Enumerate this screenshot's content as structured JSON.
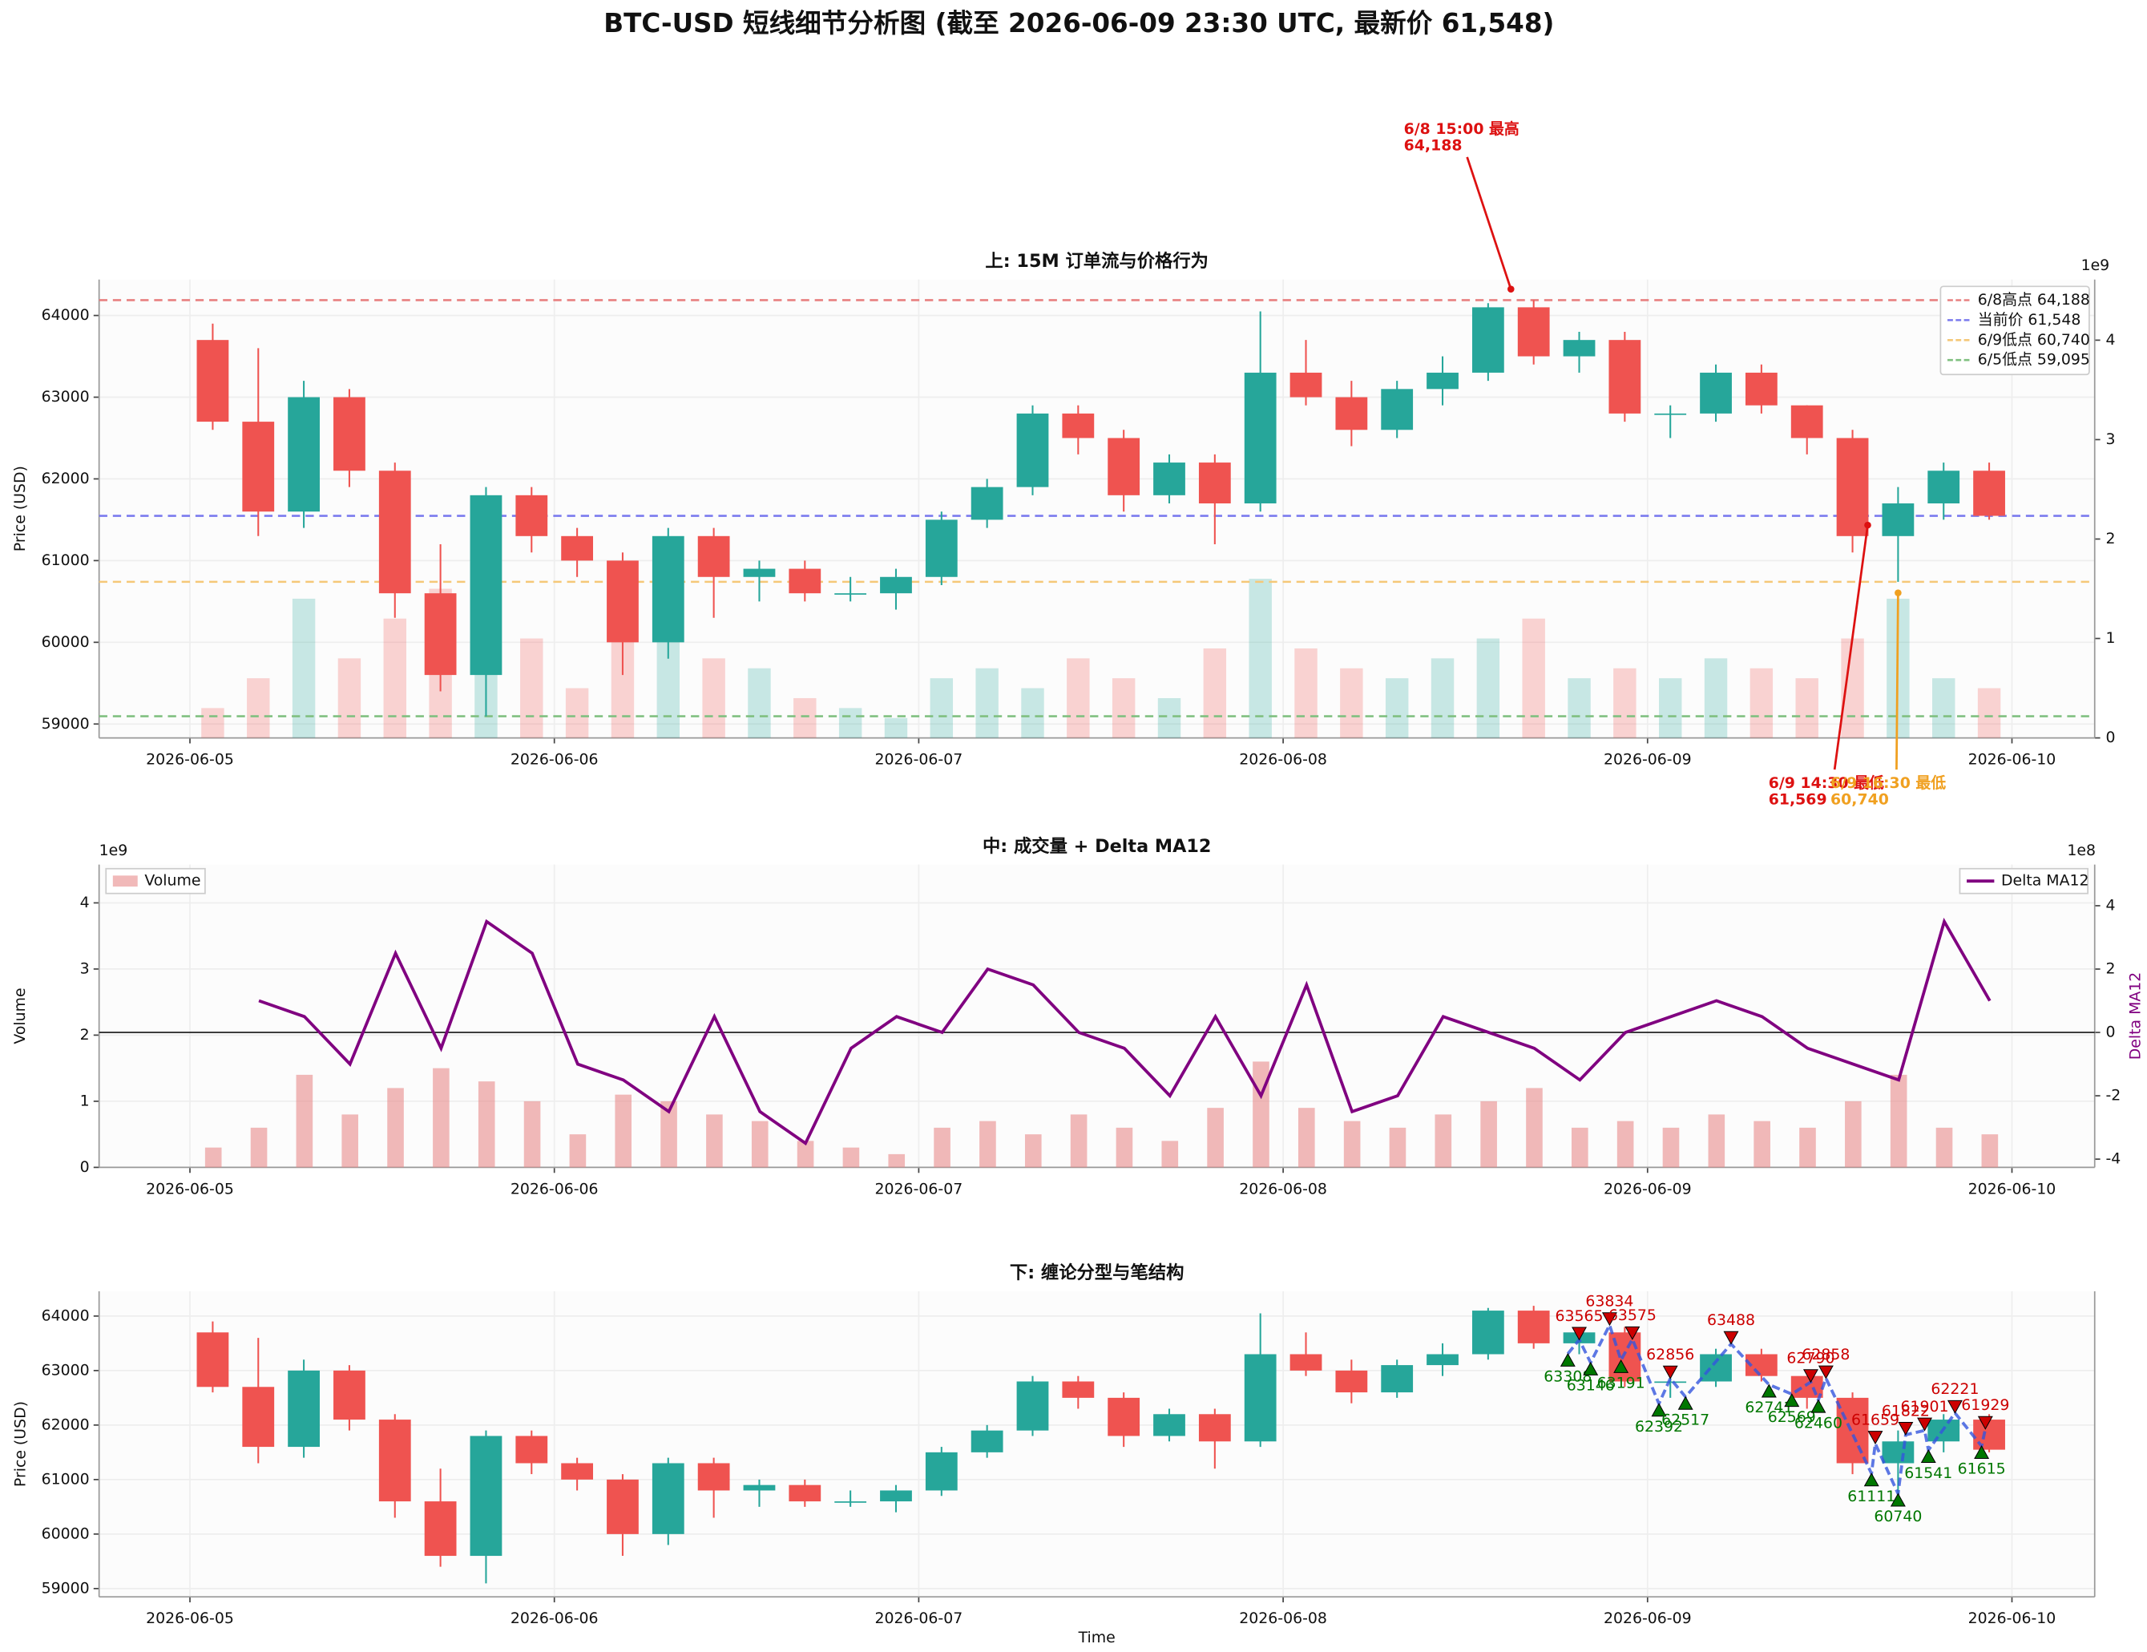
{
  "title": "BTC-USD 短线细节分析图 (截至 2026-06-09 23:30 UTC, 最新价 61,548)",
  "chart_data": [
    {
      "type": "candlestick",
      "title": "上: 15M 订单流与价格行为",
      "y_label": "Price (USD)",
      "y2_offset_label": "1e9",
      "x": [
        "2026-06-05 00:00",
        "2026-06-05 03:00",
        "2026-06-05 06:00",
        "2026-06-05 09:00",
        "2026-06-05 12:00",
        "2026-06-05 15:00",
        "2026-06-05 18:00",
        "2026-06-05 21:00",
        "2026-06-06 00:00",
        "2026-06-06 03:00",
        "2026-06-06 06:00",
        "2026-06-06 09:00",
        "2026-06-06 12:00",
        "2026-06-06 15:00",
        "2026-06-06 18:00",
        "2026-06-06 21:00",
        "2026-06-07 00:00",
        "2026-06-07 03:00",
        "2026-06-07 06:00",
        "2026-06-07 09:00",
        "2026-06-07 12:00",
        "2026-06-07 15:00",
        "2026-06-07 18:00",
        "2026-06-07 21:00",
        "2026-06-08 00:00",
        "2026-06-08 03:00",
        "2026-06-08 06:00",
        "2026-06-08 09:00",
        "2026-06-08 12:00",
        "2026-06-08 15:00",
        "2026-06-08 18:00",
        "2026-06-08 21:00",
        "2026-06-09 00:00",
        "2026-06-09 03:00",
        "2026-06-09 06:00",
        "2026-06-09 09:00",
        "2026-06-09 12:00",
        "2026-06-09 15:00",
        "2026-06-09 18:00",
        "2026-06-09 21:00"
      ],
      "open": [
        63700,
        62700,
        61600,
        63000,
        62100,
        60600,
        59600,
        61800,
        61300,
        61000,
        60000,
        61300,
        60800,
        60900,
        60600,
        60600,
        60800,
        61500,
        61900,
        62800,
        62500,
        61800,
        62200,
        61700,
        63300,
        63000,
        62600,
        63100,
        63300,
        64100,
        63500,
        63700,
        62800,
        62800,
        63300,
        62900,
        62500,
        61300,
        61700,
        62100
      ],
      "high": [
        63900,
        63600,
        63200,
        63100,
        62200,
        61200,
        61900,
        61900,
        61400,
        61100,
        61400,
        61400,
        61000,
        61000,
        60800,
        60900,
        61600,
        62000,
        62900,
        62900,
        62600,
        62300,
        62300,
        64050,
        63700,
        63200,
        63200,
        63500,
        64150,
        64188,
        63800,
        63800,
        62900,
        63400,
        63400,
        62900,
        62600,
        61900,
        62200,
        62200
      ],
      "low": [
        62600,
        61300,
        61400,
        61900,
        60300,
        59400,
        59095,
        61100,
        60800,
        59600,
        59800,
        60300,
        60500,
        60500,
        60500,
        60400,
        60700,
        61400,
        61800,
        62300,
        61600,
        61700,
        61200,
        61600,
        62900,
        62400,
        62500,
        62900,
        63200,
        63400,
        63300,
        62700,
        62500,
        62700,
        62800,
        62300,
        61100,
        60740,
        61500,
        61500
      ],
      "close": [
        62700,
        61600,
        63000,
        62100,
        60600,
        59600,
        61800,
        61300,
        61000,
        60000,
        61300,
        60800,
        60900,
        60600,
        60600,
        60800,
        61500,
        61900,
        62800,
        62500,
        61800,
        62200,
        61700,
        63300,
        63000,
        62600,
        63100,
        63300,
        64100,
        63500,
        63700,
        62800,
        62800,
        63300,
        62900,
        62500,
        61300,
        61700,
        62100,
        61548
      ],
      "up_color": "#26a69a",
      "down_color": "#ef5350",
      "hlines": [
        {
          "value": 64188,
          "label": "6/8高点 64,188",
          "color": "#e88080"
        },
        {
          "value": 61548,
          "label": "当前价 61,548",
          "color": "#7a7aee"
        },
        {
          "value": 60740,
          "label": "6/9低点 60,740",
          "color": "#f5c878"
        },
        {
          "value": 59095,
          "label": "6/5低点 59,095",
          "color": "#80c080"
        }
      ],
      "annotations": [
        {
          "label": "6/8 15:00 最高",
          "value_label": "64,188",
          "value": 64188,
          "x": "2026-06-08 15:00",
          "color": "#dd1111"
        },
        {
          "label": "6/9 14:30 最低",
          "value_label": "61,569",
          "value": 61569,
          "x": "2026-06-09 14:30",
          "color": "#dd1111"
        },
        {
          "label": "6/9 16:30 最低",
          "value_label": "60,740",
          "value": 60740,
          "x": "2026-06-09 16:30",
          "color": "#f0a020"
        }
      ],
      "xlim": [
        "2026-06-04 18:01",
        "2026-06-10 05:27"
      ],
      "xticks": [
        "2026-06-05",
        "2026-06-06",
        "2026-06-07",
        "2026-06-08",
        "2026-06-09",
        "2026-06-10"
      ],
      "ylim": [
        58830,
        64440
      ],
      "yticks": [
        59000,
        60000,
        61000,
        62000,
        63000,
        64000
      ],
      "y2lim": [
        0,
        4.61
      ],
      "y2ticks": [
        0,
        1,
        2,
        3,
        4
      ],
      "grid": true,
      "legend": "upper right"
    },
    {
      "type": "bar-line",
      "title": "中: 成交量 + Delta MA12",
      "y_label": "Volume",
      "y2_label": "Delta MA12",
      "y_offset_label": "1e9",
      "y2_offset_label": "1e8",
      "series": [
        {
          "name": "Volume",
          "color": "#e88a8a",
          "values": [
            0.3,
            0.6,
            1.4,
            0.8,
            1.2,
            1.5,
            1.3,
            1.0,
            0.5,
            1.1,
            1.0,
            0.8,
            0.7,
            0.4,
            0.3,
            0.2,
            0.6,
            0.7,
            0.5,
            0.8,
            0.6,
            0.4,
            0.9,
            1.6,
            0.9,
            0.7,
            0.6,
            0.8,
            1.0,
            1.2,
            0.6,
            0.7,
            0.6,
            0.8,
            0.7,
            0.6,
            1.0,
            1.4,
            0.6,
            0.5
          ]
        },
        {
          "name": "Delta MA12",
          "color": "#800080",
          "axis": "y2",
          "values": [
            null,
            1.0,
            0.5,
            -1,
            2.5,
            -0.5,
            3.5,
            2.5,
            -1,
            -1.5,
            -2.5,
            0.5,
            -2.5,
            -3.5,
            -0.5,
            0.5,
            0,
            2,
            1.5,
            0,
            -0.5,
            -2,
            0.5,
            -2,
            1.5,
            -2.5,
            -2,
            0.5,
            0,
            -0.5,
            -1.5,
            0,
            0.5,
            1,
            0.5,
            -0.5,
            -1,
            -1.5,
            3.5,
            1
          ]
        }
      ],
      "xlim": [
        "2026-06-04 18:01",
        "2026-06-10 05:27"
      ],
      "xticks": [
        "2026-06-05",
        "2026-06-06",
        "2026-06-07",
        "2026-06-08",
        "2026-06-09",
        "2026-06-10"
      ],
      "ylim": [
        0,
        4.58
      ],
      "yticks": [
        0,
        1,
        2,
        3,
        4
      ],
      "y2lim": [
        -4.26,
        5.3
      ],
      "y2ticks": [
        -4,
        -2,
        0,
        2,
        4
      ],
      "grid": true
    },
    {
      "type": "fractal",
      "title": "下: 缠论分型与笔结构",
      "y_label": "Price (USD)",
      "x_label": "Time",
      "fractals": {
        "x": [
          "2026-06-08 18:45",
          "2026-06-08 19:30",
          "2026-06-08 20:15",
          "2026-06-08 21:30",
          "2026-06-08 22:15",
          "2026-06-08 23:00",
          "2026-06-09 00:45",
          "2026-06-09 01:30",
          "2026-06-09 02:30",
          "2026-06-09 05:30",
          "2026-06-09 08:00",
          "2026-06-09 09:30",
          "2026-06-09 10:45",
          "2026-06-09 11:15",
          "2026-06-09 11:45",
          "2026-06-09 14:45",
          "2026-06-09 15:00",
          "2026-06-09 16:30",
          "2026-06-09 17:00",
          "2026-06-09 18:15",
          "2026-06-09 18:30",
          "2026-06-09 20:15",
          "2026-06-09 22:00",
          "2026-06-09 22:15"
        ],
        "values": [
          63308,
          63565,
          63146,
          63834,
          63191,
          63575,
          62392,
          62856,
          62517,
          63488,
          62741,
          62569,
          62790,
          62460,
          62858,
          61111,
          61659,
          60740,
          61822,
          61901,
          61541,
          62221,
          61615,
          61929
        ],
        "kinds": [
          "bottom",
          "top",
          "bottom",
          "top",
          "bottom",
          "top",
          "bottom",
          "top",
          "bottom",
          "top",
          "bottom",
          "bottom",
          "top",
          "bottom",
          "top",
          "bottom",
          "top",
          "bottom",
          "top",
          "top",
          "bottom",
          "top",
          "bottom",
          "top"
        ]
      },
      "top_color": "#cc0000",
      "bottom_color": "#007700",
      "pen_color": "#3355dd",
      "xlim": [
        "2026-06-04 18:01",
        "2026-06-10 05:27"
      ],
      "xticks": [
        "2026-06-05",
        "2026-06-06",
        "2026-06-07",
        "2026-06-08",
        "2026-06-09",
        "2026-06-10"
      ],
      "ylim": [
        58848,
        64455
      ],
      "yticks": [
        59000,
        60000,
        61000,
        62000,
        63000,
        64000
      ],
      "grid": true
    }
  ]
}
